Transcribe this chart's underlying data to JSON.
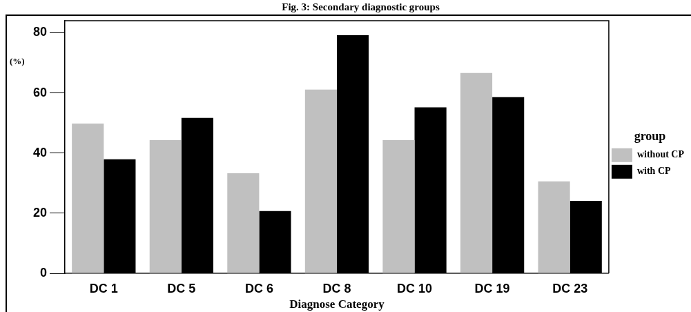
{
  "chart_data": {
    "type": "bar",
    "title": "Fig. 3: Secondary diagnostic groups",
    "xlabel": "Diagnose Category",
    "ylabel": "(%)",
    "legend_title": "group",
    "categories": [
      "DC 1",
      "DC 5",
      "DC 6",
      "DC 8",
      "DC 10",
      "DC 19",
      "DC 23"
    ],
    "series": [
      {
        "name": "without CP",
        "color": "#c0c0c0",
        "values": [
          49.8,
          44.3,
          33.3,
          61.1,
          44.3,
          66.6,
          30.6
        ]
      },
      {
        "name": "with CP",
        "color": "#000000",
        "values": [
          37.9,
          51.7,
          20.7,
          79.2,
          55.2,
          58.6,
          24.1
        ]
      }
    ],
    "ylim": [
      0,
      84
    ],
    "yticks": [
      0,
      20,
      40,
      60,
      80
    ],
    "grid": false,
    "legend": "right"
  }
}
